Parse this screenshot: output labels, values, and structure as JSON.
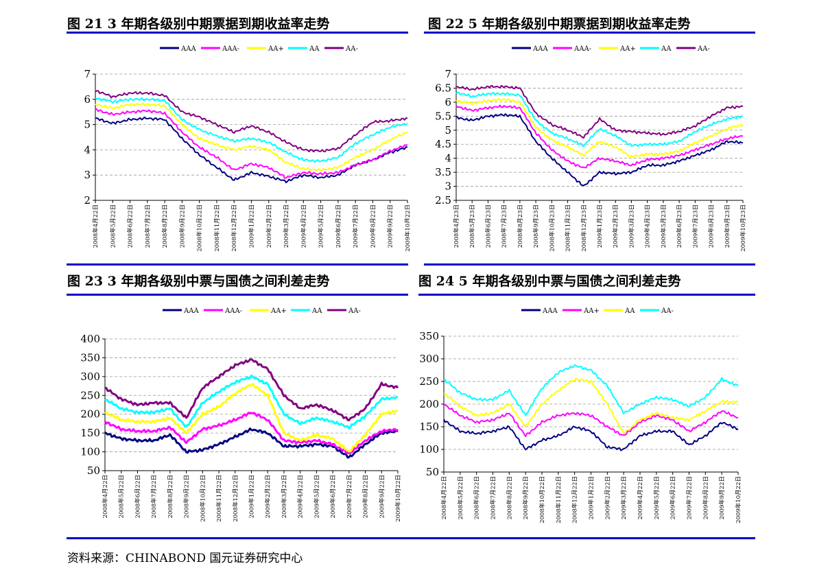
{
  "figures": [
    {
      "title": "图 21  3 年期各级别中期票据到期收益率走势"
    },
    {
      "title": "图 22  5 年期各级别中期票据到期收益率走势"
    },
    {
      "title": "图 23  3 年期各级别中票与国债之间利差走势"
    },
    {
      "title": "图 24  5 年期各级别中票与国债之间利差走势"
    }
  ],
  "source": "资料来源：CHINABOND  国元证券研究中心",
  "chart_data": [
    {
      "type": "line",
      "x": [
        "2008年4月22日",
        "2008年5月22日",
        "2008年6月22日",
        "2008年7月22日",
        "2008年8月22日",
        "2008年9月22日",
        "2008年10月22日",
        "2008年11月22日",
        "2008年12月22日",
        "2009年1月22日",
        "2009年2月22日",
        "2009年3月22日",
        "2009年4月22日",
        "2009年5月22日",
        "2009年6月22日",
        "2009年7月22日",
        "2009年8月22日",
        "2009年9月22日",
        "2009年10月22日"
      ],
      "ylim": [
        2,
        7
      ],
      "yticks": [
        "2",
        "3",
        "4",
        "5",
        "6",
        "7"
      ],
      "grid": true,
      "legend": "top",
      "series": [
        {
          "name": "AAA",
          "color": "#000080",
          "values": [
            5.25,
            5.05,
            5.2,
            5.25,
            5.2,
            4.45,
            3.8,
            3.3,
            2.8,
            3.1,
            2.95,
            2.75,
            3.0,
            2.9,
            3.0,
            3.4,
            3.6,
            3.9,
            4.1
          ]
        },
        {
          "name": "AAA-",
          "color": "#ff00ff",
          "values": [
            5.6,
            5.4,
            5.5,
            5.55,
            5.45,
            4.7,
            4.1,
            3.7,
            3.2,
            3.45,
            3.3,
            2.9,
            3.1,
            3.05,
            3.1,
            3.4,
            3.6,
            3.95,
            4.2
          ]
        },
        {
          "name": "AA+",
          "color": "#ffff00",
          "values": [
            5.8,
            5.65,
            5.8,
            5.8,
            5.75,
            5.0,
            4.45,
            4.2,
            4.0,
            4.15,
            4.0,
            3.5,
            3.25,
            3.2,
            3.3,
            3.7,
            4.0,
            4.4,
            4.7
          ]
        },
        {
          "name": "AA",
          "color": "#00ffff",
          "values": [
            6.05,
            5.9,
            6.0,
            6.0,
            5.95,
            5.2,
            4.8,
            4.55,
            4.35,
            4.45,
            4.3,
            3.9,
            3.6,
            3.55,
            3.7,
            4.25,
            4.6,
            4.9,
            5.05
          ]
        },
        {
          "name": "AA-",
          "color": "#800080",
          "values": [
            6.35,
            6.1,
            6.25,
            6.25,
            6.15,
            5.5,
            5.3,
            5.0,
            4.7,
            4.95,
            4.7,
            4.3,
            4.0,
            3.95,
            4.05,
            4.6,
            5.1,
            5.15,
            5.25
          ]
        }
      ]
    },
    {
      "type": "line",
      "x": [
        "2008年4月23日",
        "2008年5月23日",
        "2008年6月23日",
        "2008年7月23日",
        "2008年8月23日",
        "2008年9月23日",
        "2008年10月23日",
        "2008年11月23日",
        "2008年12月23日",
        "2009年1月23日",
        "2009年2月23日",
        "2009年3月23日",
        "2009年4月23日",
        "2009年5月23日",
        "2009年6月23日",
        "2009年7月23日",
        "2009年8月23日",
        "2009年9月23日",
        "2009年10月23日"
      ],
      "ylim": [
        2.5,
        7
      ],
      "yticks": [
        "2.5",
        "3",
        "3.5",
        "4",
        "4.5",
        "5",
        "5.5",
        "6",
        "6.5",
        "7"
      ],
      "grid": true,
      "legend": "top",
      "series": [
        {
          "name": "AAA",
          "color": "#000080",
          "values": [
            5.45,
            5.35,
            5.5,
            5.55,
            5.5,
            4.6,
            4.0,
            3.5,
            3.0,
            3.5,
            3.45,
            3.5,
            3.75,
            3.75,
            3.9,
            4.1,
            4.3,
            4.6,
            4.55
          ]
        },
        {
          "name": "AAA-",
          "color": "#ff00ff",
          "values": [
            5.85,
            5.7,
            5.8,
            5.85,
            5.8,
            4.9,
            4.3,
            3.9,
            3.65,
            4.0,
            3.9,
            3.75,
            3.95,
            4.0,
            4.1,
            4.3,
            4.5,
            4.7,
            4.8
          ]
        },
        {
          "name": "AA+",
          "color": "#ffff00",
          "values": [
            6.05,
            5.95,
            6.05,
            6.1,
            6.0,
            5.1,
            4.65,
            4.4,
            4.1,
            4.6,
            4.4,
            4.05,
            4.15,
            4.15,
            4.25,
            4.55,
            4.8,
            5.05,
            5.2
          ]
        },
        {
          "name": "AA",
          "color": "#00ffff",
          "values": [
            6.35,
            6.2,
            6.3,
            6.3,
            6.25,
            5.35,
            4.9,
            4.7,
            4.45,
            5.05,
            4.8,
            4.45,
            4.5,
            4.5,
            4.6,
            4.95,
            5.2,
            5.4,
            5.5
          ]
        },
        {
          "name": "AA-",
          "color": "#800080",
          "values": [
            6.55,
            6.45,
            6.55,
            6.55,
            6.5,
            5.6,
            5.2,
            5.0,
            4.75,
            5.4,
            5.0,
            4.95,
            4.9,
            4.85,
            4.95,
            5.15,
            5.5,
            5.8,
            5.85
          ]
        }
      ]
    },
    {
      "type": "line",
      "x": [
        "2008年4月22日",
        "2008年5月22日",
        "2008年6月22日",
        "2008年7月22日",
        "2008年8月22日",
        "2008年9月22日",
        "2008年10月22日",
        "2008年11月22日",
        "2008年12月22日",
        "2009年1月22日",
        "2009年2月22日",
        "2009年3月22日",
        "2009年4月22日",
        "2009年5月22日",
        "2009年6月22日",
        "2009年7月22日",
        "2009年8月22日",
        "2009年9月22日",
        "2009年10月22日"
      ],
      "ylim": [
        50,
        400
      ],
      "yticks": [
        "50",
        "100",
        "150",
        "200",
        "250",
        "300",
        "350",
        "400"
      ],
      "grid": true,
      "legend": "top",
      "series": [
        {
          "name": "AAA",
          "color": "#000080",
          "values": [
            150,
            135,
            130,
            130,
            145,
            100,
            105,
            120,
            140,
            160,
            150,
            115,
            115,
            120,
            115,
            85,
            120,
            150,
            155
          ]
        },
        {
          "name": "AAA-",
          "color": "#ff00ff",
          "values": [
            180,
            160,
            155,
            155,
            165,
            125,
            160,
            170,
            185,
            205,
            185,
            130,
            125,
            130,
            120,
            95,
            130,
            155,
            160
          ]
        },
        {
          "name": "AA+",
          "color": "#ffff00",
          "values": [
            205,
            185,
            180,
            180,
            190,
            150,
            200,
            220,
            255,
            280,
            250,
            150,
            130,
            145,
            135,
            100,
            145,
            200,
            210
          ]
        },
        {
          "name": "AA",
          "color": "#00ffff",
          "values": [
            240,
            215,
            205,
            205,
            215,
            165,
            230,
            260,
            285,
            300,
            280,
            200,
            175,
            190,
            180,
            165,
            195,
            240,
            245
          ]
        },
        {
          "name": "AA-",
          "color": "#800080",
          "values": [
            270,
            240,
            225,
            230,
            230,
            190,
            270,
            300,
            330,
            345,
            320,
            250,
            215,
            225,
            210,
            185,
            215,
            280,
            270
          ]
        }
      ]
    },
    {
      "type": "line",
      "x": [
        "2008年4月22日",
        "2008年5月22日",
        "2008年6月22日",
        "2008年7月22日",
        "2008年8月22日",
        "2008年9月22日",
        "2008年10月22日",
        "2008年11月22日",
        "2008年12月22日",
        "2009年1月22日",
        "2009年2月22日",
        "2009年3月22日",
        "2009年4月22日",
        "2009年5月22日",
        "2009年6月22日",
        "2009年7月22日",
        "2009年8月22日",
        "2009年9月22日",
        "2009年10月22日"
      ],
      "ylim": [
        50,
        350
      ],
      "yticks": [
        "50",
        "100",
        "150",
        "200",
        "250",
        "300",
        "350"
      ],
      "grid": true,
      "legend": "top",
      "series": [
        {
          "name": "AAA",
          "color": "#000080",
          "values": [
            165,
            140,
            135,
            140,
            150,
            100,
            120,
            130,
            150,
            140,
            105,
            100,
            130,
            140,
            140,
            110,
            130,
            160,
            145
          ]
        },
        {
          "name": "AA+",
          "color": "#ff00ff",
          "values": [
            200,
            175,
            160,
            165,
            180,
            130,
            160,
            175,
            180,
            175,
            150,
            130,
            160,
            175,
            165,
            140,
            160,
            185,
            170
          ]
        },
        {
          "name": "AA",
          "color": "#ffff00",
          "values": [
            225,
            195,
            175,
            180,
            200,
            150,
            200,
            230,
            255,
            250,
            200,
            135,
            165,
            180,
            170,
            165,
            185,
            205,
            205
          ]
        },
        {
          "name": "AA-",
          "color": "#00ffff",
          "values": [
            255,
            225,
            210,
            210,
            230,
            175,
            235,
            270,
            285,
            275,
            240,
            180,
            200,
            215,
            210,
            195,
            215,
            255,
            240
          ]
        }
      ]
    }
  ]
}
